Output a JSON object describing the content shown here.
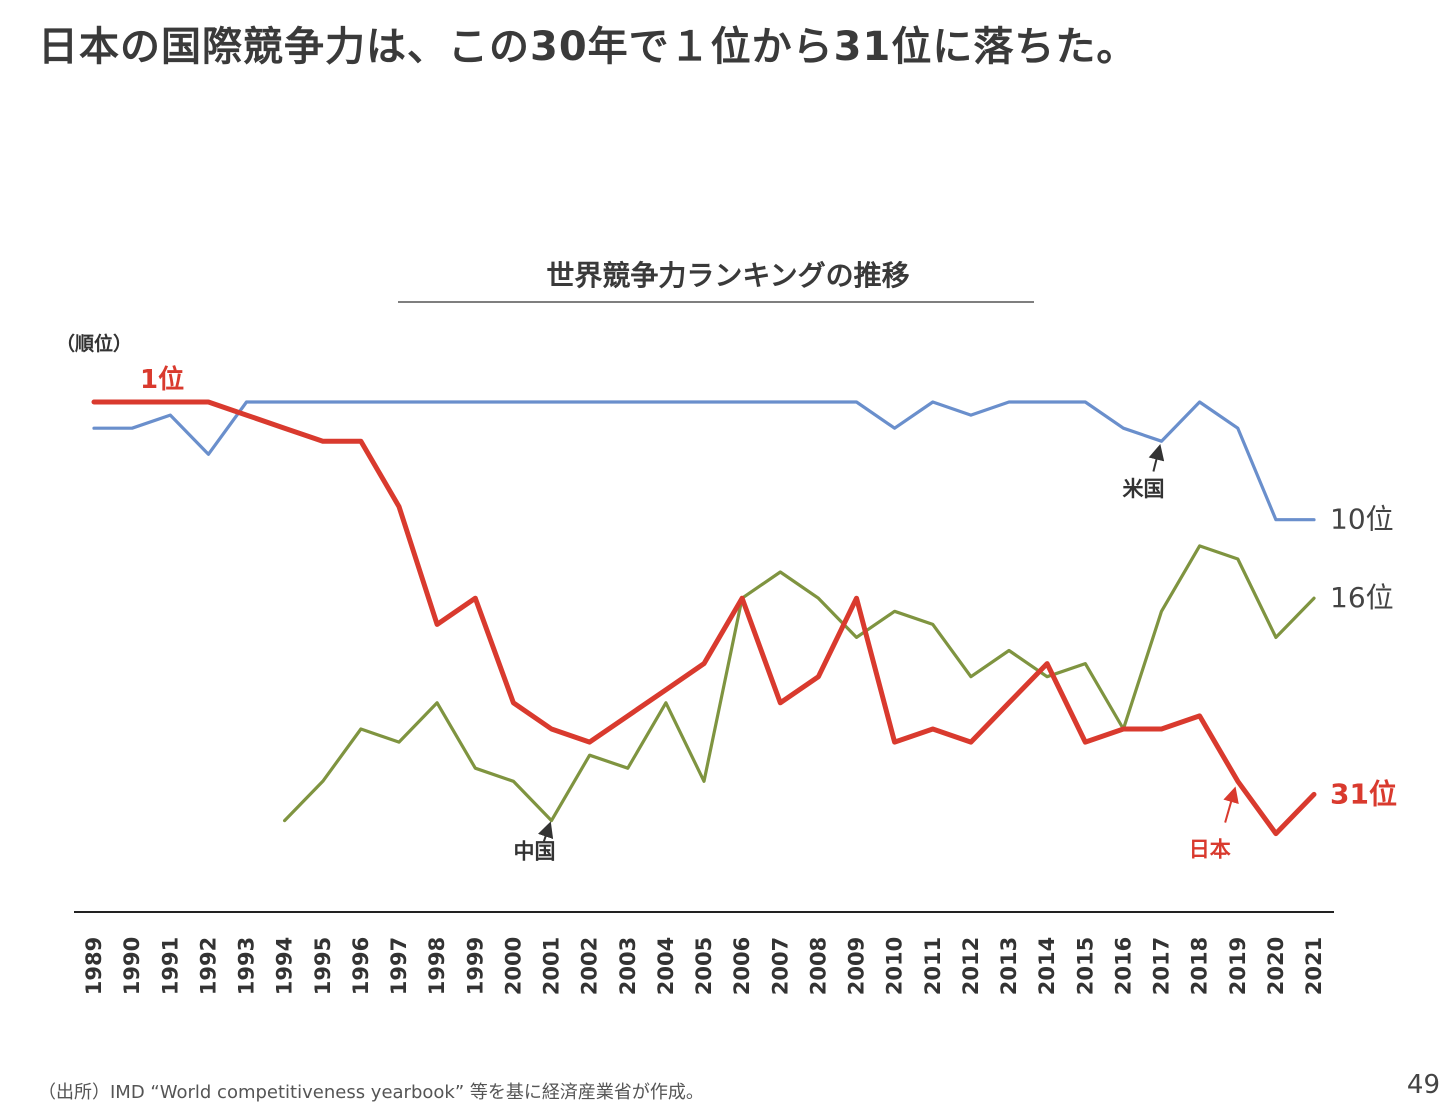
{
  "slide": {
    "title": "日本の国際競争力は、この30年で１位から31位に落ちた。",
    "source": "（出所）IMD “World competitiveness yearbook” 等を基に経済産業省が作成。",
    "page_number": "49"
  },
  "chart_data": {
    "type": "line",
    "title": "世界競争力ランキングの推移",
    "ylabel": "（順位）",
    "y_inverted": true,
    "ylim": [
      1,
      35
    ],
    "grid": false,
    "legend": "none",
    "x": [
      1989,
      1990,
      1991,
      1992,
      1993,
      1994,
      1995,
      1996,
      1997,
      1998,
      1999,
      2000,
      2001,
      2002,
      2003,
      2004,
      2005,
      2006,
      2007,
      2008,
      2009,
      2010,
      2011,
      2012,
      2013,
      2014,
      2015,
      2016,
      2017,
      2018,
      2019,
      2020,
      2021
    ],
    "series": [
      {
        "name": "米国",
        "color": "#6a8fcc",
        "values": [
          3,
          3,
          2,
          5,
          1,
          1,
          1,
          1,
          1,
          1,
          1,
          1,
          1,
          1,
          1,
          1,
          1,
          1,
          1,
          1,
          1,
          3,
          1,
          2,
          1,
          1,
          1,
          3,
          4,
          1,
          3,
          10,
          10
        ]
      },
      {
        "name": "中国",
        "color": "#7f9440",
        "values": [
          null,
          null,
          null,
          null,
          null,
          33,
          30,
          26,
          27,
          24,
          29,
          30,
          33,
          28,
          29,
          24,
          30,
          16,
          14,
          16,
          19,
          17,
          18,
          22,
          20,
          22,
          21,
          26,
          17,
          12,
          13,
          19,
          16
        ]
      },
      {
        "name": "日本",
        "color": "#d93a2e",
        "values": [
          1,
          1,
          1,
          1,
          2,
          3,
          4,
          4,
          9,
          18,
          16,
          24,
          26,
          27,
          25,
          23,
          21,
          16,
          24,
          22,
          16,
          27,
          26,
          27,
          24,
          21,
          27,
          26,
          26,
          25,
          30,
          34,
          31
        ]
      }
    ],
    "annotations": [
      {
        "text": "1位",
        "series": "日本",
        "year": 1989,
        "rank": 1,
        "color": "#d93a2e"
      },
      {
        "text": "10位",
        "series": "米国",
        "year": 2021,
        "rank": 10,
        "color": "#444444"
      },
      {
        "text": "16位",
        "series": "中国",
        "year": 2021,
        "rank": 16,
        "color": "#444444"
      },
      {
        "text": "31位",
        "series": "日本",
        "year": 2021,
        "rank": 31,
        "color": "#d93a2e"
      },
      {
        "text": "米国",
        "series": "米国",
        "year": 2017,
        "rank": 4,
        "color": "#333333"
      },
      {
        "text": "中国",
        "series": "中国",
        "year": 2001,
        "rank": 33,
        "color": "#333333"
      },
      {
        "text": "日本",
        "series": "日本",
        "year": 2019,
        "rank": 30,
        "color": "#d93a2e"
      }
    ]
  }
}
